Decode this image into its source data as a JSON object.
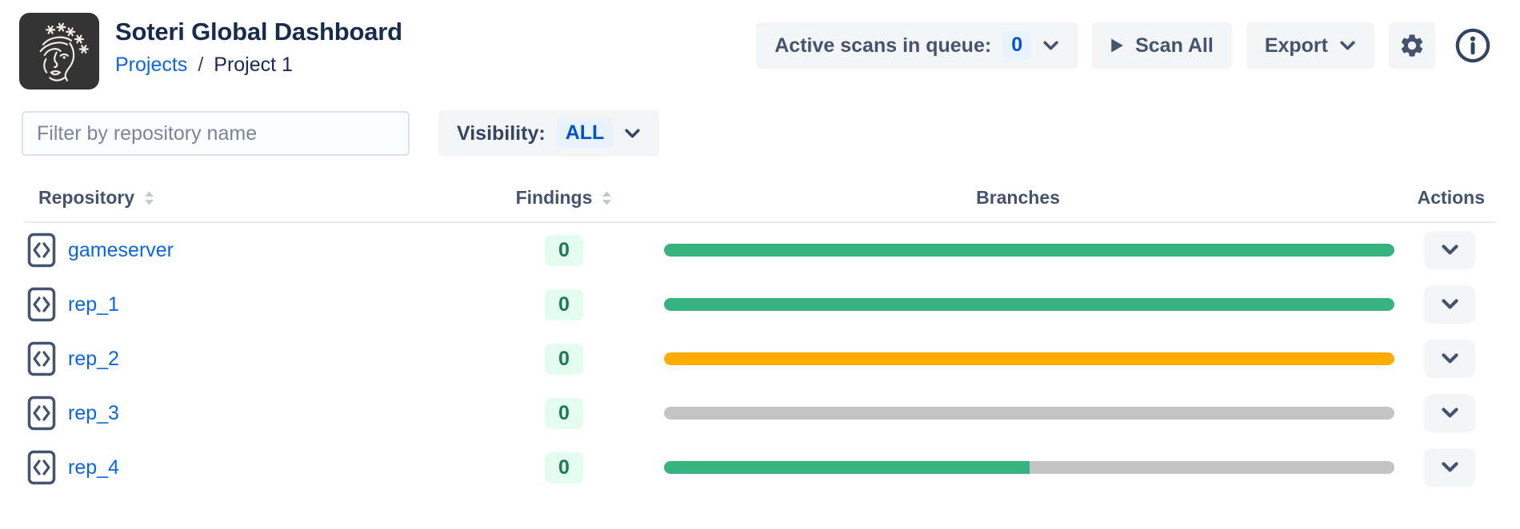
{
  "header": {
    "title": "Soteri Global Dashboard",
    "breadcrumb": {
      "projects_link": "Projects",
      "separator": "/",
      "current_page": "Project 1"
    },
    "toolbar": {
      "active_scans_label": "Active scans in queue:",
      "active_scans_count": "0",
      "scan_all_label": "Scan All",
      "export_label": "Export"
    }
  },
  "filters": {
    "repo_filter_placeholder": "Filter by repository name",
    "repo_filter_value": "",
    "visibility_label": "Visibility:",
    "visibility_selected": "ALL"
  },
  "table": {
    "headers": [
      {
        "label": "Repository",
        "sortable": true
      },
      {
        "label": "Findings",
        "sortable": true
      },
      {
        "label": "Branches",
        "sortable": false
      },
      {
        "label": "Actions",
        "sortable": false
      }
    ],
    "rows": [
      {
        "repository": "gameserver",
        "findings": "0",
        "branch_bar": {
          "fill_color": "#36B37E",
          "fill_percent": 100
        }
      },
      {
        "repository": "rep_1",
        "findings": "0",
        "branch_bar": {
          "fill_color": "#36B37E",
          "fill_percent": 100
        }
      },
      {
        "repository": "rep_2",
        "findings": "0",
        "branch_bar": {
          "fill_color": "#FFAB00",
          "fill_percent": 100
        }
      },
      {
        "repository": "rep_3",
        "findings": "0",
        "branch_bar": {
          "fill_color": "#C4C4C4",
          "fill_percent": 100
        }
      },
      {
        "repository": "rep_4",
        "findings": "0",
        "branch_bar": {
          "fill_color": "#36B37E",
          "fill_percent": 50,
          "track_color": "#C4C4C4"
        }
      }
    ]
  },
  "colors": {
    "link_blue": "#0C66E4",
    "badge_blue_bg": "#E9F2FF",
    "badge_blue_text": "#0055CC",
    "findings_badge_bg": "#E3FCEF",
    "findings_badge_text": "#1B7A4F",
    "bar_green": "#36B37E",
    "bar_orange": "#FFAB00",
    "bar_gray": "#C4C4C4",
    "button_bg": "#F4F5F7",
    "text_dark": "#172B4D",
    "text_slate": "#44546F"
  }
}
